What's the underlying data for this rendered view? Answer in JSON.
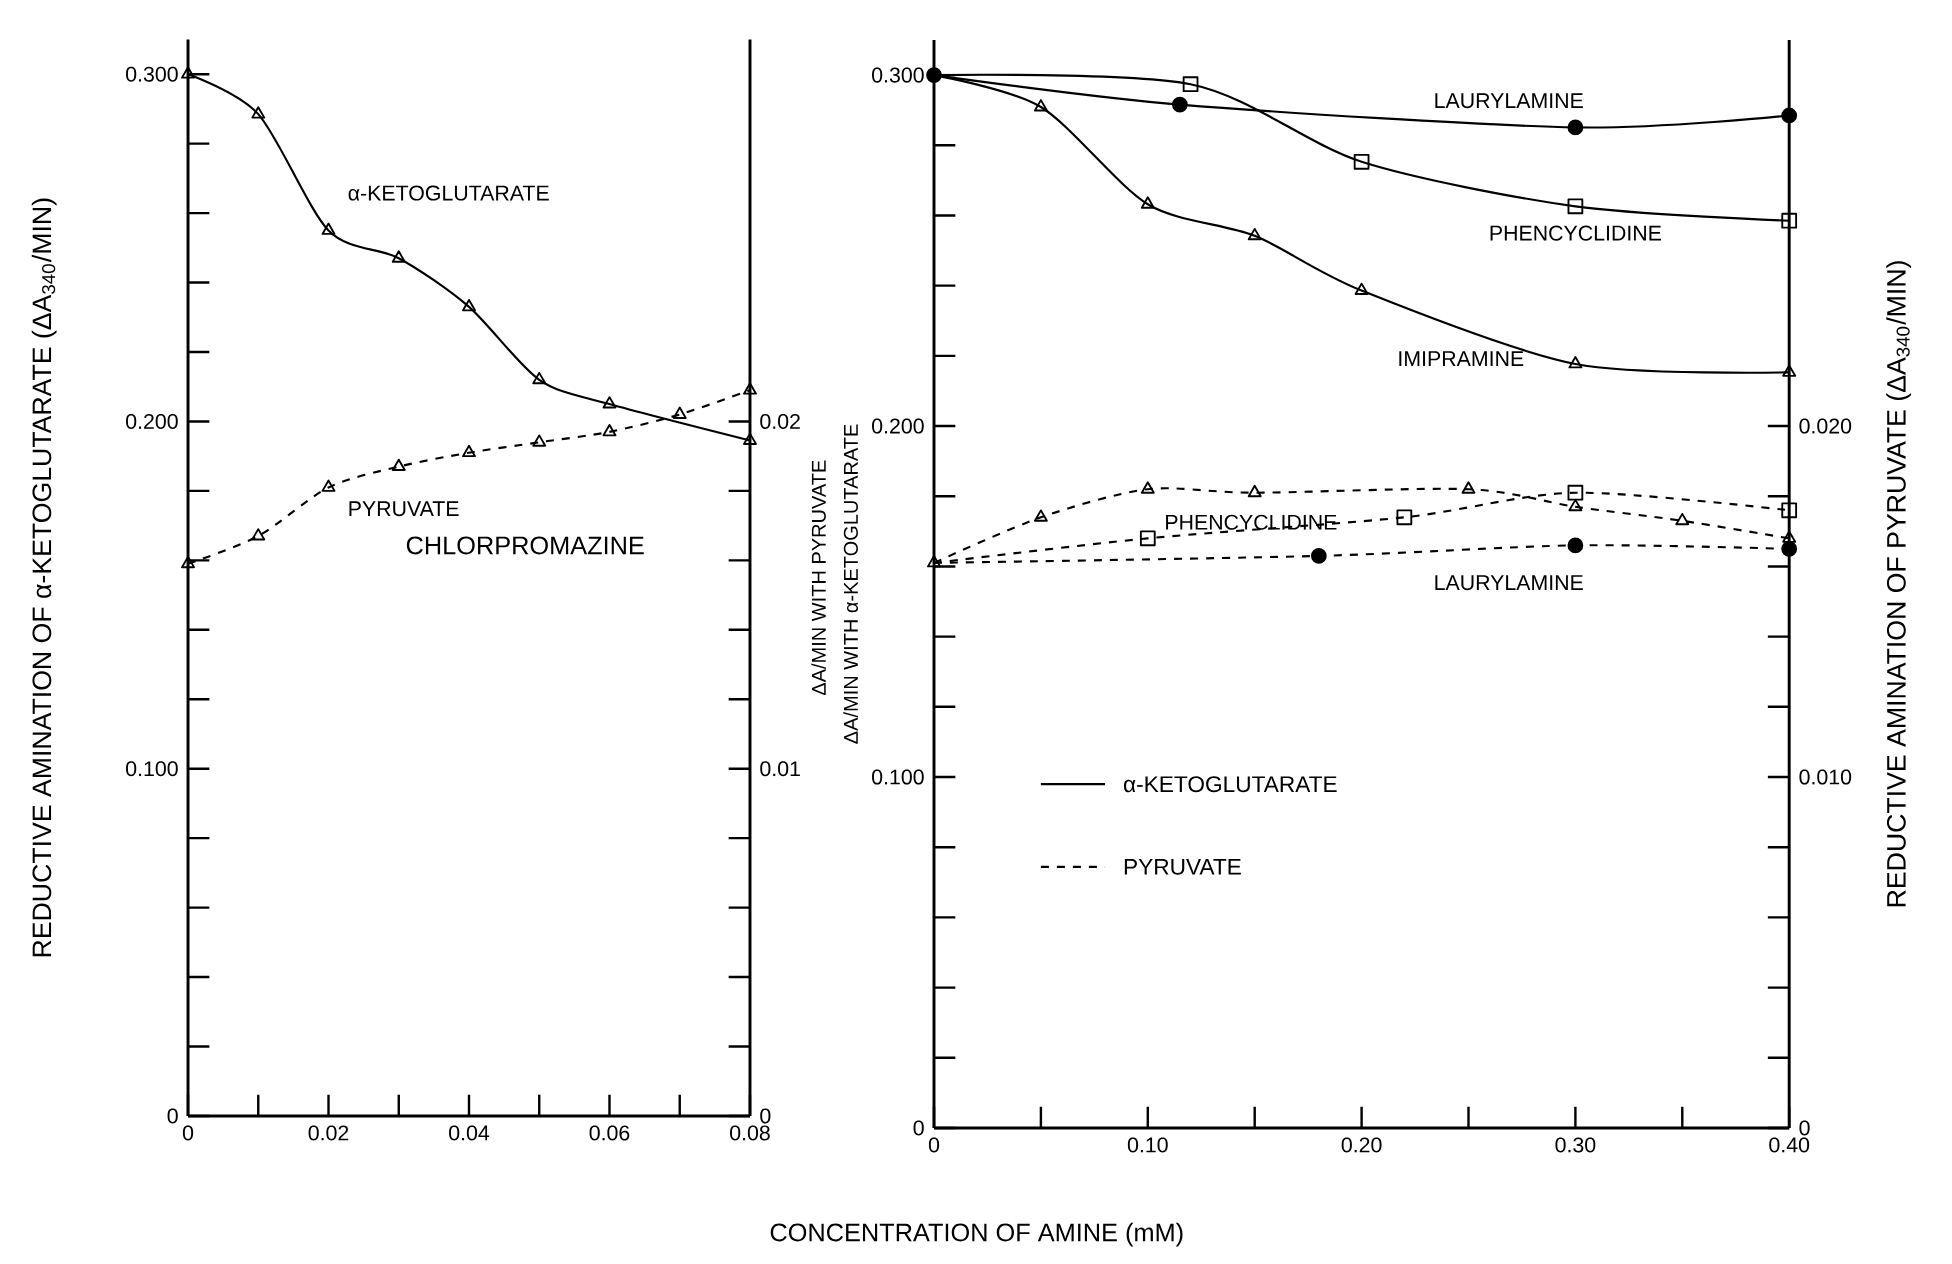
{
  "chart_data": [
    {
      "type": "line",
      "ylabel": "REDUCTIVE AMINATION OF α-KETOGLUTARATE (ΔA$_{340}$/MIN)",
      "y2label": "ΔA/MIN WITH PYRUVATE",
      "annotations": [
        "CHLORPROMAZINE"
      ],
      "xlim": [
        0,
        0.08
      ],
      "ylim": [
        0,
        0.31
      ],
      "y2lim": [
        0,
        0.031
      ],
      "xticks": [
        0,
        {
          "value": 0.01,
          "label": null
        },
        0.02,
        {
          "value": 0.03,
          "label": null
        },
        0.04,
        {
          "value": 0.05,
          "label": null
        },
        0.06,
        {
          "value": 0.07,
          "label": null
        },
        0.08
      ],
      "yticks": [
        0,
        {
          "value": 0.02,
          "label": null
        },
        {
          "value": 0.04,
          "label": null
        },
        {
          "value": 0.06,
          "label": null
        },
        {
          "value": 0.08,
          "label": null
        },
        {
          "value": 0.1,
          "label": "0.100"
        },
        {
          "value": 0.12,
          "label": null
        },
        {
          "value": 0.14,
          "label": null
        },
        {
          "value": 0.16,
          "label": null
        },
        {
          "value": 0.18,
          "label": null
        },
        {
          "value": 0.2,
          "label": "0.200"
        },
        {
          "value": 0.22,
          "label": null
        },
        {
          "value": 0.24,
          "label": null
        },
        {
          "value": 0.26,
          "label": null
        },
        {
          "value": 0.28,
          "label": null
        },
        {
          "value": 0.3,
          "label": "0.300"
        }
      ],
      "y2ticks": [
        0,
        {
          "value": 0.002,
          "label": null
        },
        {
          "value": 0.004,
          "label": null
        },
        {
          "value": 0.006,
          "label": null
        },
        {
          "value": 0.008,
          "label": null
        },
        0.01,
        {
          "value": 0.012,
          "label": null
        },
        {
          "value": 0.014,
          "label": null
        },
        {
          "value": 0.016,
          "label": null
        },
        {
          "value": 0.018,
          "label": null
        },
        0.02
      ],
      "series": [
        {
          "name": "α-KETOGLUTARATE",
          "color": "#000000",
          "marker": "triangle",
          "line_style": "solid",
          "x": [
            0,
            0.01,
            0.02,
            0.03,
            0.04,
            0.05,
            0.06,
            0.08
          ],
          "values": [
            0.3,
            0.2885,
            0.255,
            0.247,
            0.233,
            0.212,
            0.205,
            0.1945
          ]
        },
        {
          "name": "PYRUVATE",
          "color": "#000000",
          "marker": "triangle",
          "line_style": "dashed",
          "axis": "y2",
          "x": [
            0,
            0.01,
            0.02,
            0.03,
            0.04,
            0.05,
            0.06,
            0.07,
            0.08
          ],
          "values": [
            0.0159,
            0.0167,
            0.0181,
            0.0187,
            0.0191,
            0.0194,
            0.0197,
            0.0202,
            0.0209
          ]
        }
      ]
    },
    {
      "type": "line",
      "xlabel": "CONCENTRATION OF AMINE (mM)",
      "ylabel": "ΔA/MIN WITH α-KETOGLUTARATE",
      "y2label": "REDUCTIVE AMINATION OF PYRUVATE (ΔA$_{340}$/MIN)",
      "annotations": [
        "α-KETOGLUTARATE",
        "PYRUVATE"
      ],
      "xlim": [
        0,
        0.4
      ],
      "ylim": [
        0,
        0.31
      ],
      "y2lim": [
        0,
        0.031
      ],
      "xticks": [
        0,
        {
          "value": 0.05,
          "label": null
        },
        {
          "value": 0.1,
          "label": "0.10"
        },
        {
          "value": 0.15,
          "label": null
        },
        {
          "value": 0.2,
          "label": "0.20"
        },
        {
          "value": 0.25,
          "label": null
        },
        {
          "value": 0.3,
          "label": "0.30"
        },
        {
          "value": 0.35,
          "label": null
        },
        {
          "value": 0.4,
          "label": "0.40"
        }
      ],
      "yticks": [
        0,
        {
          "value": 0.02,
          "label": null
        },
        {
          "value": 0.04,
          "label": null
        },
        {
          "value": 0.06,
          "label": null
        },
        {
          "value": 0.08,
          "label": null
        },
        {
          "value": 0.1,
          "label": "0.100"
        },
        {
          "value": 0.12,
          "label": null
        },
        {
          "value": 0.14,
          "label": null
        },
        {
          "value": 0.16,
          "label": null
        },
        {
          "value": 0.18,
          "label": null
        },
        {
          "value": 0.2,
          "label": "0.200"
        },
        {
          "value": 0.22,
          "label": null
        },
        {
          "value": 0.24,
          "label": null
        },
        {
          "value": 0.26,
          "label": null
        },
        {
          "value": 0.28,
          "label": null
        },
        {
          "value": 0.3,
          "label": "0.300"
        }
      ],
      "y2ticks": [
        0,
        {
          "value": 0.002,
          "label": null
        },
        {
          "value": 0.004,
          "label": null
        },
        {
          "value": 0.006,
          "label": null
        },
        {
          "value": 0.008,
          "label": null
        },
        {
          "value": 0.01,
          "label": "0.010"
        },
        {
          "value": 0.012,
          "label": null
        },
        {
          "value": 0.014,
          "label": null
        },
        {
          "value": 0.016,
          "label": null
        },
        {
          "value": 0.018,
          "label": null
        },
        {
          "value": 0.02,
          "label": "0.020"
        }
      ],
      "series": [
        {
          "name": "LAURYLAMINE",
          "color": "#000000",
          "marker": "circle",
          "line_style": "solid",
          "x": [
            0,
            0.115,
            0.3,
            0.4
          ],
          "values": [
            0.3,
            0.2916,
            0.2851,
            0.2885
          ]
        },
        {
          "name": "PHENCYCLIDINE",
          "color": "#000000",
          "marker": "square",
          "line_style": "solid",
          "x": [
            0,
            0.12,
            0.2,
            0.3,
            0.4
          ],
          "values": [
            0.3,
            0.2974,
            0.2753,
            0.2626,
            0.2585
          ]
        },
        {
          "name": "IMIPRAMINE",
          "color": "#000000",
          "marker": "triangle",
          "line_style": "solid",
          "x": [
            0,
            0.05,
            0.1,
            0.15,
            0.2,
            0.3,
            0.4
          ],
          "values": [
            0.3,
            0.2909,
            0.2632,
            0.2542,
            0.2386,
            0.2177,
            0.2153
          ]
        },
        {
          "color": "#000000",
          "marker": "triangle",
          "line_style": "dashed",
          "axis": "y2",
          "x": [
            0,
            0.05,
            0.1,
            0.15,
            0.25,
            0.3,
            0.35,
            0.4
          ],
          "values": [
            0.0161,
            0.0174,
            0.0182,
            0.0181,
            0.0182,
            0.0177,
            0.0173,
            0.0168
          ]
        },
        {
          "name": "PHENCYCLIDINE",
          "color": "#000000",
          "marker": "square",
          "line_style": "dashed",
          "axis": "y2",
          "x": [
            0,
            0.1,
            0.22,
            0.3,
            0.4
          ],
          "values": [
            0.0161,
            0.0168,
            0.0174,
            0.0181,
            0.0176
          ]
        },
        {
          "name": "LAURYLAMINE",
          "color": "#000000",
          "marker": "circle",
          "line_style": "dashed",
          "axis": "y2",
          "x": [
            0,
            0.18,
            0.3,
            0.4
          ],
          "values": [
            0.0161,
            0.0163,
            0.0166,
            0.0165
          ]
        }
      ]
    }
  ]
}
